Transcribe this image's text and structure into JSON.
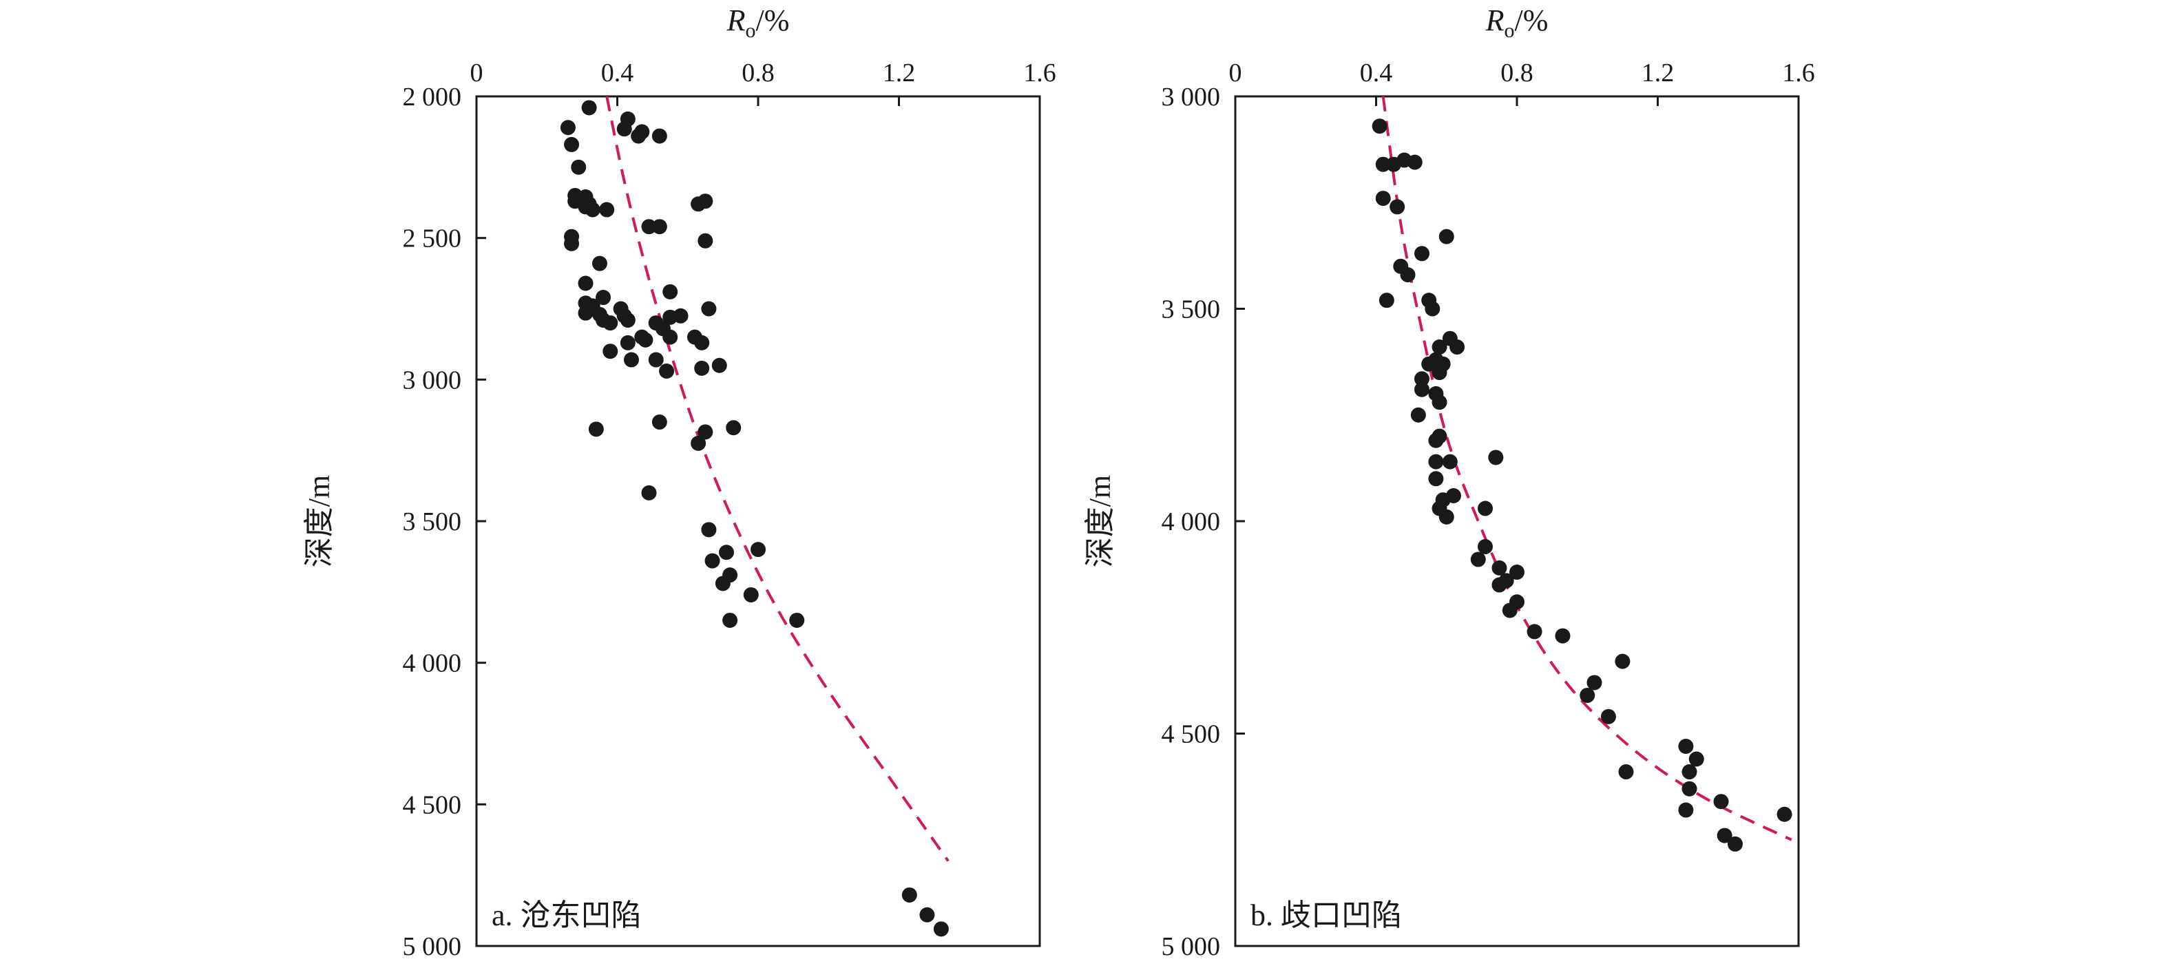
{
  "chart_data": [
    {
      "type": "scatter",
      "panel_label": "a. 沧东凹陷",
      "xlabel": "R",
      "xlabel_sub": "o",
      "xlabel_unit": "/%",
      "ylabel": "深度/m",
      "xlim": [
        0,
        1.6
      ],
      "ylim": [
        2000,
        5000
      ],
      "x_axis_position": "top",
      "y_inverted": true,
      "x_ticks": [
        0,
        0.4,
        0.8,
        1.2,
        1.6
      ],
      "x_tick_labels": [
        "0",
        "0.4",
        "0.8",
        "1.2",
        "1.6"
      ],
      "y_ticks": [
        2000,
        2500,
        3000,
        3500,
        4000,
        4500,
        5000
      ],
      "y_tick_labels": [
        "2 000",
        "2 500",
        "3 000",
        "3 500",
        "4 000",
        "4 500",
        "5 000"
      ],
      "points": [
        [
          0.32,
          2040
        ],
        [
          0.43,
          2080
        ],
        [
          0.26,
          2110
        ],
        [
          0.42,
          2115
        ],
        [
          0.47,
          2125
        ],
        [
          0.46,
          2140
        ],
        [
          0.52,
          2140
        ],
        [
          0.27,
          2170
        ],
        [
          0.29,
          2250
        ],
        [
          0.28,
          2350
        ],
        [
          0.31,
          2355
        ],
        [
          0.28,
          2370
        ],
        [
          0.3,
          2370
        ],
        [
          0.32,
          2380
        ],
        [
          0.31,
          2390
        ],
        [
          0.33,
          2400
        ],
        [
          0.37,
          2400
        ],
        [
          0.63,
          2380
        ],
        [
          0.65,
          2370
        ],
        [
          0.49,
          2460
        ],
        [
          0.52,
          2460
        ],
        [
          0.27,
          2495
        ],
        [
          0.27,
          2520
        ],
        [
          0.65,
          2510
        ],
        [
          0.35,
          2590
        ],
        [
          0.31,
          2660
        ],
        [
          0.55,
          2690
        ],
        [
          0.36,
          2710
        ],
        [
          0.31,
          2730
        ],
        [
          0.33,
          2740
        ],
        [
          0.41,
          2750
        ],
        [
          0.66,
          2750
        ],
        [
          0.31,
          2765
        ],
        [
          0.35,
          2770
        ],
        [
          0.42,
          2775
        ],
        [
          0.58,
          2775
        ],
        [
          0.55,
          2780
        ],
        [
          0.36,
          2790
        ],
        [
          0.38,
          2800
        ],
        [
          0.43,
          2790
        ],
        [
          0.51,
          2800
        ],
        [
          0.53,
          2820
        ],
        [
          0.47,
          2850
        ],
        [
          0.48,
          2860
        ],
        [
          0.55,
          2850
        ],
        [
          0.43,
          2870
        ],
        [
          0.62,
          2850
        ],
        [
          0.64,
          2870
        ],
        [
          0.38,
          2900
        ],
        [
          0.44,
          2930
        ],
        [
          0.51,
          2930
        ],
        [
          0.54,
          2970
        ],
        [
          0.64,
          2960
        ],
        [
          0.69,
          2950
        ],
        [
          0.52,
          3150
        ],
        [
          0.34,
          3175
        ],
        [
          0.73,
          3170
        ],
        [
          0.65,
          3185
        ],
        [
          0.63,
          3225
        ],
        [
          0.49,
          3400
        ],
        [
          0.66,
          3530
        ],
        [
          0.71,
          3610
        ],
        [
          0.8,
          3600
        ],
        [
          0.67,
          3640
        ],
        [
          0.72,
          3690
        ],
        [
          0.7,
          3720
        ],
        [
          0.78,
          3760
        ],
        [
          0.72,
          3850
        ],
        [
          0.91,
          3850
        ],
        [
          1.23,
          4820
        ],
        [
          1.28,
          4890
        ],
        [
          1.32,
          4940
        ]
      ],
      "fit_line": {
        "style": "dashed",
        "color": "#d21a5a",
        "x": [
          0.37,
          0.42,
          0.48,
          0.55,
          0.63,
          0.73,
          0.85,
          1.0,
          1.17,
          1.34
        ],
        "y": [
          2000,
          2300,
          2600,
          2900,
          3200,
          3500,
          3800,
          4100,
          4400,
          4700
        ]
      }
    },
    {
      "type": "scatter",
      "panel_label": "b. 歧口凹陷",
      "xlabel": "R",
      "xlabel_sub": "o",
      "xlabel_unit": "/%",
      "ylabel": "深度/m",
      "xlim": [
        0,
        1.6
      ],
      "ylim": [
        3000,
        5000
      ],
      "x_axis_position": "top",
      "y_inverted": true,
      "x_ticks": [
        0,
        0.4,
        0.8,
        1.2,
        1.6
      ],
      "x_tick_labels": [
        "0",
        "0.4",
        "0.8",
        "1.2",
        "1.6"
      ],
      "y_ticks": [
        3000,
        3500,
        4000,
        4500,
        5000
      ],
      "y_tick_labels": [
        "3 000",
        "3 500",
        "4 000",
        "4 500",
        "5 000"
      ],
      "points": [
        [
          0.41,
          3070
        ],
        [
          0.48,
          3150
        ],
        [
          0.51,
          3155
        ],
        [
          0.42,
          3160
        ],
        [
          0.45,
          3160
        ],
        [
          0.42,
          3240
        ],
        [
          0.46,
          3260
        ],
        [
          0.6,
          3330
        ],
        [
          0.53,
          3370
        ],
        [
          0.47,
          3400
        ],
        [
          0.49,
          3420
        ],
        [
          0.43,
          3480
        ],
        [
          0.55,
          3480
        ],
        [
          0.56,
          3500
        ],
        [
          0.61,
          3570
        ],
        [
          0.58,
          3590
        ],
        [
          0.63,
          3590
        ],
        [
          0.57,
          3620
        ],
        [
          0.59,
          3630
        ],
        [
          0.55,
          3630
        ],
        [
          0.58,
          3650
        ],
        [
          0.53,
          3665
        ],
        [
          0.53,
          3690
        ],
        [
          0.57,
          3700
        ],
        [
          0.58,
          3720
        ],
        [
          0.52,
          3750
        ],
        [
          0.58,
          3800
        ],
        [
          0.57,
          3810
        ],
        [
          0.61,
          3860
        ],
        [
          0.57,
          3860
        ],
        [
          0.74,
          3850
        ],
        [
          0.57,
          3900
        ],
        [
          0.62,
          3940
        ],
        [
          0.59,
          3950
        ],
        [
          0.58,
          3970
        ],
        [
          0.71,
          3970
        ],
        [
          0.6,
          3990
        ],
        [
          0.71,
          4060
        ],
        [
          0.69,
          4090
        ],
        [
          0.75,
          4110
        ],
        [
          0.8,
          4120
        ],
        [
          0.75,
          4150
        ],
        [
          0.77,
          4140
        ],
        [
          0.8,
          4190
        ],
        [
          0.78,
          4210
        ],
        [
          0.85,
          4260
        ],
        [
          0.93,
          4270
        ],
        [
          1.1,
          4330
        ],
        [
          1.02,
          4380
        ],
        [
          1.0,
          4410
        ],
        [
          1.06,
          4460
        ],
        [
          1.28,
          4530
        ],
        [
          1.31,
          4560
        ],
        [
          1.11,
          4590
        ],
        [
          1.29,
          4590
        ],
        [
          1.29,
          4630
        ],
        [
          1.28,
          4680
        ],
        [
          1.38,
          4660
        ],
        [
          1.56,
          4690
        ],
        [
          1.39,
          4740
        ],
        [
          1.42,
          4760
        ]
      ],
      "fit_line": {
        "style": "dashed",
        "color": "#d21a5a",
        "x": [
          0.42,
          0.47,
          0.53,
          0.6,
          0.69,
          0.8,
          0.94,
          1.12,
          1.33,
          1.58
        ],
        "y": [
          3000,
          3300,
          3550,
          3800,
          4000,
          4200,
          4380,
          4530,
          4650,
          4750
        ]
      }
    }
  ]
}
